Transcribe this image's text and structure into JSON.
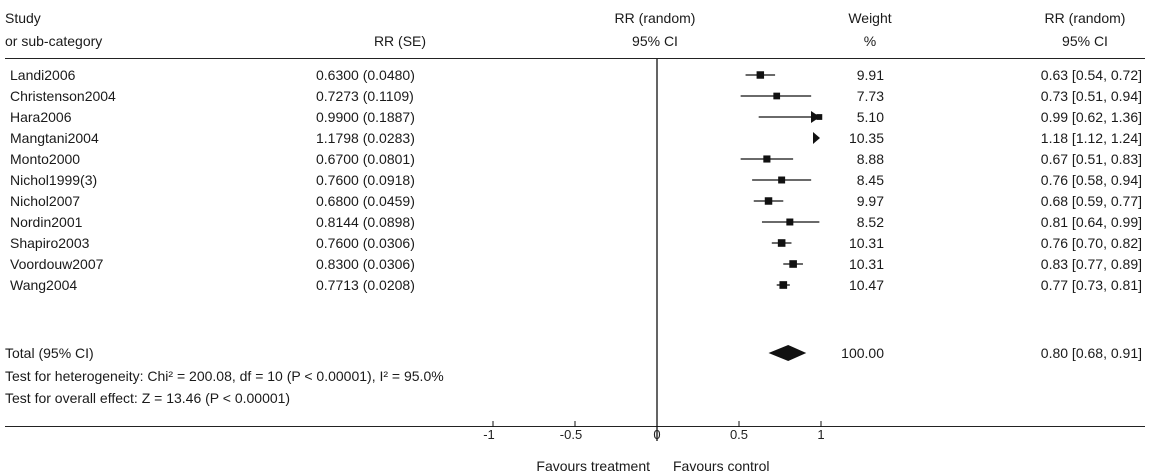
{
  "header": {
    "study_line1": "Study",
    "study_line2": "or sub-category",
    "rrse": "RR (SE)",
    "rr_random_line1": "RR (random)",
    "rr_random_line2": "95% CI",
    "weight_line1": "Weight",
    "weight_line2": "%",
    "rr_ci_line1": "RR (random)",
    "rr_ci_line2": "95% CI"
  },
  "studies": [
    {
      "name": "Landi2006",
      "rrse": "0.6300 (0.0480)",
      "weight": "9.91",
      "ci_text": "0.63 [0.54, 0.72]"
    },
    {
      "name": "Christenson2004",
      "rrse": "0.7273 (0.1109)",
      "weight": "7.73",
      "ci_text": "0.73 [0.51, 0.94]"
    },
    {
      "name": "Hara2006",
      "rrse": "0.9900 (0.1887)",
      "weight": "5.10",
      "ci_text": "0.99 [0.62, 1.36]"
    },
    {
      "name": "Mangtani2004",
      "rrse": "1.1798 (0.0283)",
      "weight": "10.35",
      "ci_text": "1.18 [1.12, 1.24]"
    },
    {
      "name": "Monto2000",
      "rrse": "0.6700 (0.0801)",
      "weight": "8.88",
      "ci_text": "0.67 [0.51, 0.83]"
    },
    {
      "name": "Nichol1999(3)",
      "rrse": "0.7600 (0.0918)",
      "weight": "8.45",
      "ci_text": "0.76 [0.58, 0.94]"
    },
    {
      "name": "Nichol2007",
      "rrse": "0.6800 (0.0459)",
      "weight": "9.97",
      "ci_text": "0.68 [0.59, 0.77]"
    },
    {
      "name": "Nordin2001",
      "rrse": "0.8144 (0.0898)",
      "weight": "8.52",
      "ci_text": "0.81 [0.64, 0.99]"
    },
    {
      "name": "Shapiro2003",
      "rrse": "0.7600 (0.0306)",
      "weight": "10.31",
      "ci_text": "0.76 [0.70, 0.82]"
    },
    {
      "name": "Voordouw2007",
      "rrse": "0.8300 (0.0306)",
      "weight": "10.31",
      "ci_text": "0.83 [0.77, 0.89]"
    },
    {
      "name": "Wang2004",
      "rrse": "0.7713 (0.0208)",
      "weight": "10.47",
      "ci_text": "0.77 [0.73, 0.81]"
    }
  ],
  "total": {
    "label": "Total (95% CI)",
    "weight": "100.00",
    "ci_text": "0.80 [0.68, 0.91]",
    "heterogeneity": "Test for heterogeneity: Chi² = 200.08, df = 10 (P < 0.00001), I² = 95.0%",
    "overall_effect": "Test for overall effect: Z = 13.46 (P < 0.00001)"
  },
  "axis": {
    "favours_left": "Favours treatment",
    "favours_right": "Favours control"
  },
  "chart_data": {
    "type": "forest",
    "xlim": [
      -1,
      1
    ],
    "ticks": [
      -1,
      -0.5,
      0,
      0.5,
      1
    ],
    "tick_labels": [
      "-1",
      "-0.5",
      "0",
      "0.5",
      "1"
    ],
    "reference_line": 0,
    "points": [
      {
        "name": "Landi2006",
        "rr": 0.63,
        "lo": 0.54,
        "hi": 0.72,
        "weight": 9.91
      },
      {
        "name": "Christenson2004",
        "rr": 0.73,
        "lo": 0.51,
        "hi": 0.94,
        "weight": 7.73
      },
      {
        "name": "Hara2006",
        "rr": 0.99,
        "lo": 0.62,
        "hi": 1.36,
        "weight": 5.1
      },
      {
        "name": "Mangtani2004",
        "rr": 1.18,
        "lo": 1.12,
        "hi": 1.24,
        "weight": 10.35
      },
      {
        "name": "Monto2000",
        "rr": 0.67,
        "lo": 0.51,
        "hi": 0.83,
        "weight": 8.88
      },
      {
        "name": "Nichol1999(3)",
        "rr": 0.76,
        "lo": 0.58,
        "hi": 0.94,
        "weight": 8.45
      },
      {
        "name": "Nichol2007",
        "rr": 0.68,
        "lo": 0.59,
        "hi": 0.77,
        "weight": 9.97
      },
      {
        "name": "Nordin2001",
        "rr": 0.81,
        "lo": 0.64,
        "hi": 0.99,
        "weight": 8.52
      },
      {
        "name": "Shapiro2003",
        "rr": 0.76,
        "lo": 0.7,
        "hi": 0.82,
        "weight": 10.31
      },
      {
        "name": "Voordouw2007",
        "rr": 0.83,
        "lo": 0.77,
        "hi": 0.89,
        "weight": 10.31
      },
      {
        "name": "Wang2004",
        "rr": 0.77,
        "lo": 0.73,
        "hi": 0.81,
        "weight": 10.47
      }
    ],
    "summary": {
      "rr": 0.8,
      "lo": 0.68,
      "hi": 0.91
    }
  }
}
